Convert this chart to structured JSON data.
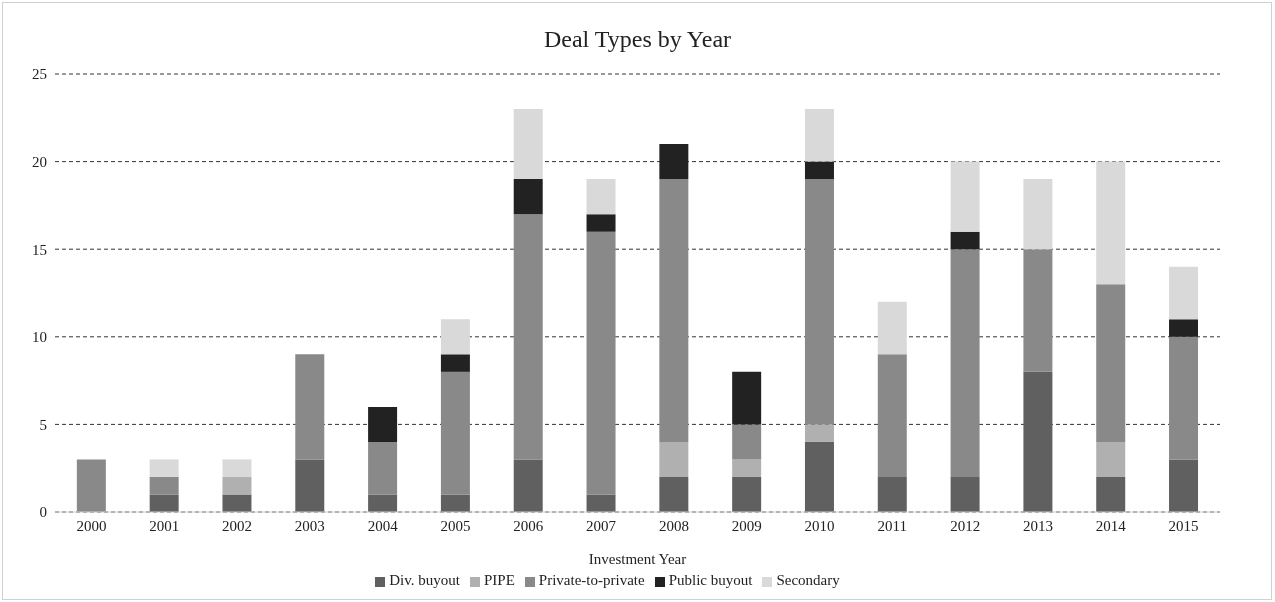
{
  "chart_data": {
    "type": "bar",
    "title": "Deal Types by Year",
    "xlabel": "Investment Year",
    "categories": [
      "2000",
      "2001",
      "2002",
      "2003",
      "2004",
      "2005",
      "2006",
      "2007",
      "2008",
      "2009",
      "2010",
      "2011",
      "2012",
      "2013",
      "2014",
      "2015"
    ],
    "stacked": true,
    "series": [
      {
        "name": "Div. buyout",
        "color": "#606060",
        "values": [
          0,
          1,
          1,
          3,
          1,
          1,
          3,
          1,
          2,
          2,
          4,
          2,
          2,
          8,
          2,
          3
        ]
      },
      {
        "name": "PIPE",
        "color": "#b0b0b0",
        "values": [
          0,
          0,
          1,
          0,
          0,
          0,
          0,
          0,
          2,
          1,
          1,
          0,
          0,
          0,
          2,
          0
        ]
      },
      {
        "name": "Private-to-private",
        "color": "#898989",
        "values": [
          3,
          1,
          0,
          6,
          3,
          7,
          14,
          15,
          15,
          2,
          14,
          7,
          13,
          7,
          9,
          7
        ]
      },
      {
        "name": "Public buyout",
        "color": "#222222",
        "values": [
          0,
          0,
          0,
          0,
          2,
          1,
          2,
          1,
          2,
          3,
          1,
          0,
          1,
          0,
          0,
          1
        ]
      },
      {
        "name": "Secondary",
        "color": "#d9d9d9",
        "values": [
          0,
          1,
          1,
          0,
          0,
          2,
          4,
          2,
          0,
          0,
          3,
          3,
          4,
          4,
          7,
          3
        ]
      }
    ],
    "ylim": [
      0,
      25
    ],
    "yticks": [
      0,
      5,
      10,
      15,
      20,
      25
    ],
    "grid": "y",
    "legend": "bottom"
  }
}
